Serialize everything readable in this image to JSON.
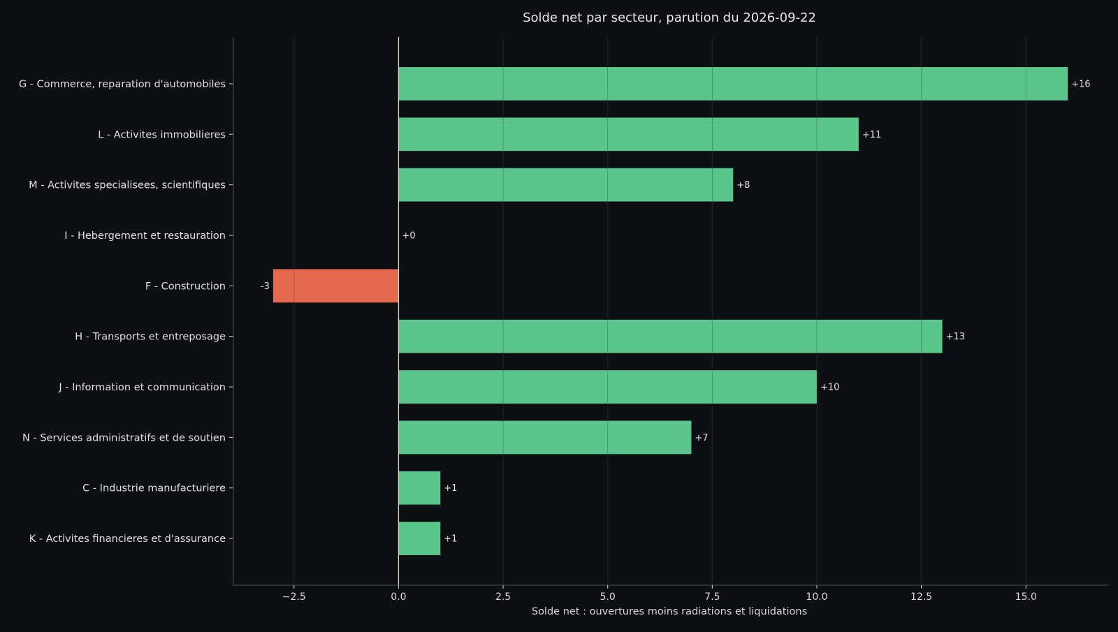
{
  "chart_data": {
    "type": "bar",
    "orientation": "horizontal",
    "title": "Solde net par secteur, parution du 2026-09-22",
    "xlabel": "Solde net : ouvertures moins radiations et liquidations",
    "ylabel": "",
    "categories": [
      "G - Commerce, reparation d'automobiles",
      "L - Activites immobilieres",
      "M - Activites specialisees, scientifiques ",
      "I - Hebergement et restauration",
      "F - Construction",
      "H - Transports et entreposage",
      "J - Information et communication",
      "N - Services administratifs et de soutien",
      "C - Industrie manufacturiere",
      "K - Activites financieres et d'assurance"
    ],
    "values": [
      16,
      11,
      8,
      0,
      -3,
      13,
      10,
      7,
      1,
      1
    ],
    "value_labels": [
      "+16",
      "+11",
      "+8",
      "+0",
      "-3",
      "+13",
      "+10",
      "+7",
      "+1",
      "+1"
    ],
    "xlim": [
      -3.95,
      16.95
    ],
    "xticks": [
      -2.5,
      0.0,
      2.5,
      5.0,
      7.5,
      10.0,
      12.5,
      15.0
    ],
    "xtick_labels": [
      "−2.5",
      "0.0",
      "2.5",
      "5.0",
      "7.5",
      "10.0",
      "12.5",
      "15.0"
    ],
    "grid": "vertical",
    "legend": "none",
    "colors": {
      "positive": "#5ac58b",
      "negative": "#e5694f",
      "background": "#0e0f12",
      "zero_line": "#d6d6c8",
      "grid": "#2a2c30",
      "spine": "#4a4c50",
      "text": "#e0e0e0"
    }
  }
}
